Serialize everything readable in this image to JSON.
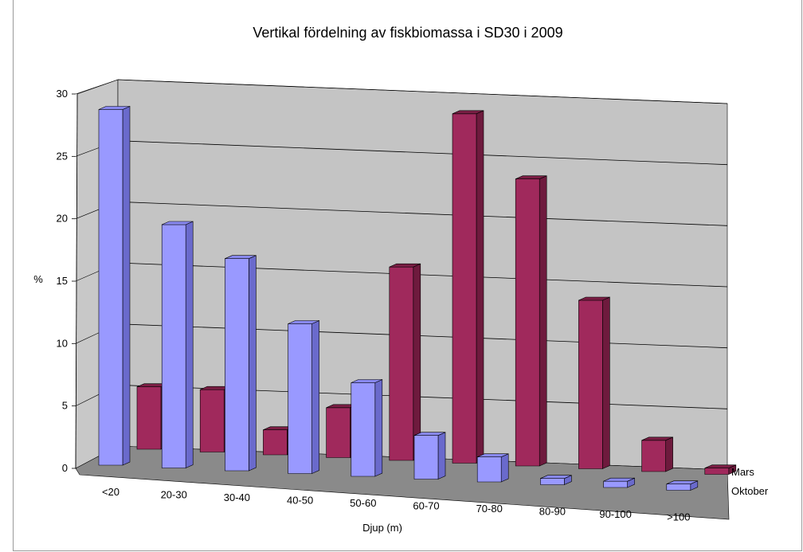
{
  "chart_data": {
    "type": "bar",
    "title": "Vertikal fördelning av fiskbiomassa i SD30 i 2009",
    "xlabel": "Djup (m)",
    "ylabel": "%",
    "categories": [
      "<20",
      "20-30",
      "30-40",
      "40-50",
      "50-60",
      "60-70",
      "70-80",
      "80-90",
      "90-100",
      ">100"
    ],
    "yticks": [
      "0",
      "5",
      "10",
      "15",
      "20",
      "25",
      "30"
    ],
    "ylim": [
      0,
      30
    ],
    "series": [
      {
        "name": "Mars",
        "color": "#a0295c",
        "top_color": "#7a1e44",
        "side_color": "#6e1a3d",
        "values": [
          5,
          5,
          2,
          4,
          15.5,
          28,
          23,
          13.5,
          2.5,
          0.5
        ]
      },
      {
        "name": "Oktober",
        "color": "#9999ff",
        "top_color": "#8888ee",
        "side_color": "#6a6acc",
        "values": [
          28.5,
          19.5,
          17,
          12,
          7.5,
          3.5,
          2,
          0.5,
          0.5,
          0.5
        ]
      }
    ],
    "grid": true,
    "legend_position": "right"
  }
}
